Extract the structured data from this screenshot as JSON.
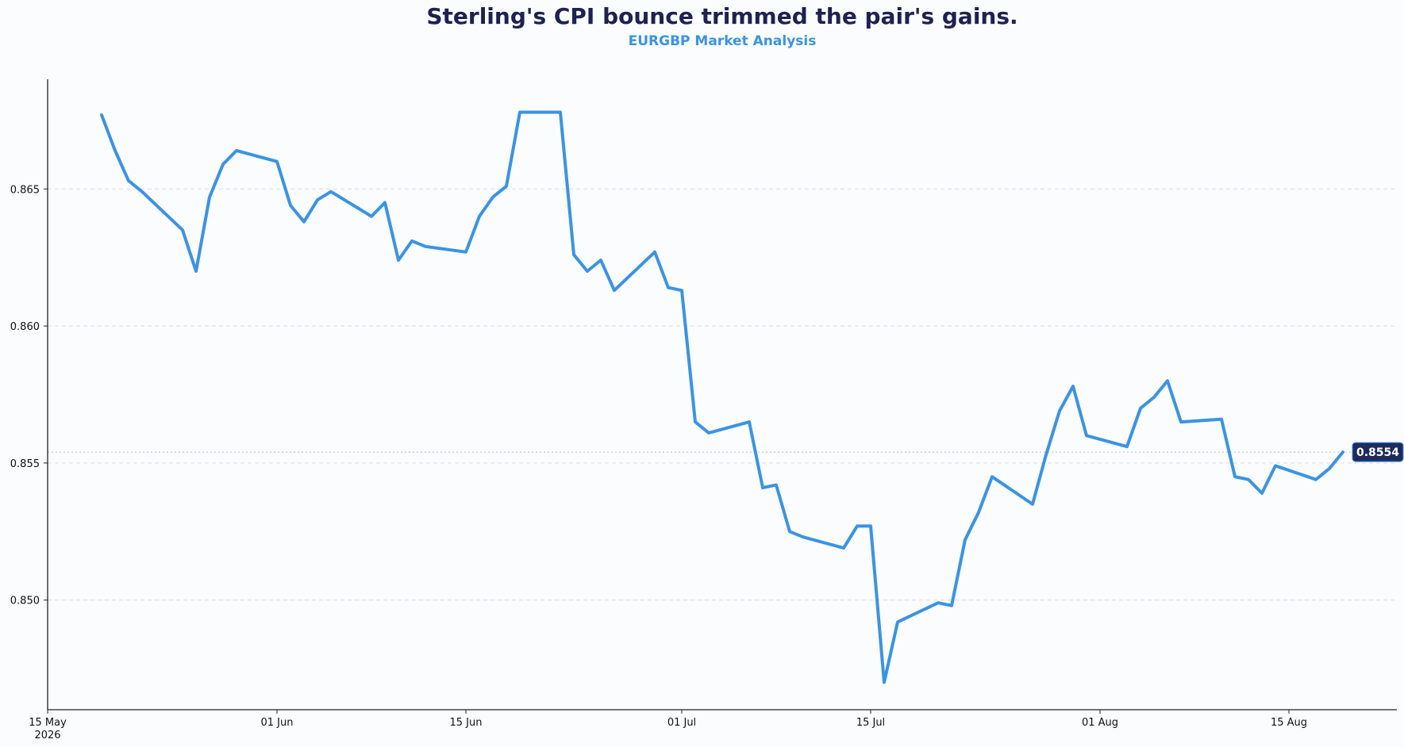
{
  "title": "Sterling's CPI bounce trimmed the pair's gains.",
  "subtitle": "EURGBP Market Analysis",
  "colors": {
    "line": "#3b93e3",
    "title": "#1f2150",
    "subtitle": "#3b93e3",
    "badge_bg": "#1f2a5c",
    "grid": "#d9dde3",
    "axis": "#222222"
  },
  "chart_data": {
    "type": "line",
    "title": "Sterling's CPI bounce trimmed the pair's gains.",
    "subtitle": "EURGBP Market Analysis",
    "xlabel": "",
    "ylabel": "",
    "xlim": [
      "2026-05-15",
      "2026-08-23"
    ],
    "ylim": [
      0.846,
      0.869
    ],
    "grid": "horizontal dashed",
    "last_value_label": "0.8554",
    "x_ticks": [
      {
        "date": "2026-05-15",
        "label": "15 May",
        "sublabel": "2026"
      },
      {
        "date": "2026-06-01",
        "label": "01 Jun",
        "sublabel": ""
      },
      {
        "date": "2026-06-15",
        "label": "15 Jun",
        "sublabel": ""
      },
      {
        "date": "2026-07-01",
        "label": "01 Jul",
        "sublabel": ""
      },
      {
        "date": "2026-07-15",
        "label": "15 Jul",
        "sublabel": ""
      },
      {
        "date": "2026-08-01",
        "label": "01 Aug",
        "sublabel": ""
      },
      {
        "date": "2026-08-15",
        "label": "15 Aug",
        "sublabel": ""
      }
    ],
    "y_ticks": [
      {
        "value": 0.85,
        "label": "0.850"
      },
      {
        "value": 0.855,
        "label": "0.855"
      },
      {
        "value": 0.86,
        "label": "0.860"
      },
      {
        "value": 0.865,
        "label": "0.865"
      }
    ],
    "series": [
      {
        "points": [
          [
            "2026-05-19",
            0.8677
          ],
          [
            "2026-05-20",
            0.8664
          ],
          [
            "2026-05-21",
            0.8653
          ],
          [
            "2026-05-22",
            0.8649
          ],
          [
            "2026-05-25",
            0.8635
          ],
          [
            "2026-05-26",
            0.862
          ],
          [
            "2026-05-27",
            0.8647
          ],
          [
            "2026-05-28",
            0.8659
          ],
          [
            "2026-05-29",
            0.8664
          ],
          [
            "2026-06-01",
            0.866
          ],
          [
            "2026-06-02",
            0.8644
          ],
          [
            "2026-06-03",
            0.8638
          ],
          [
            "2026-06-04",
            0.8646
          ],
          [
            "2026-06-05",
            0.8649
          ],
          [
            "2026-06-08",
            0.864
          ],
          [
            "2026-06-09",
            0.8645
          ],
          [
            "2026-06-10",
            0.8624
          ],
          [
            "2026-06-11",
            0.8631
          ],
          [
            "2026-06-12",
            0.8629
          ],
          [
            "2026-06-15",
            0.8627
          ],
          [
            "2026-06-16",
            0.864
          ],
          [
            "2026-06-17",
            0.8647
          ],
          [
            "2026-06-18",
            0.8651
          ],
          [
            "2026-06-19",
            0.8678
          ],
          [
            "2026-06-22",
            0.8678
          ],
          [
            "2026-06-23",
            0.8626
          ],
          [
            "2026-06-24",
            0.862
          ],
          [
            "2026-06-25",
            0.8624
          ],
          [
            "2026-06-26",
            0.8613
          ],
          [
            "2026-06-29",
            0.8627
          ],
          [
            "2026-06-30",
            0.8614
          ],
          [
            "2026-07-01",
            0.8613
          ],
          [
            "2026-07-02",
            0.8565
          ],
          [
            "2026-07-03",
            0.8561
          ],
          [
            "2026-07-06",
            0.8565
          ],
          [
            "2026-07-07",
            0.8541
          ],
          [
            "2026-07-08",
            0.8542
          ],
          [
            "2026-07-09",
            0.8525
          ],
          [
            "2026-07-10",
            0.8523
          ],
          [
            "2026-07-13",
            0.8519
          ],
          [
            "2026-07-14",
            0.8527
          ],
          [
            "2026-07-15",
            0.8527
          ],
          [
            "2026-07-16",
            0.847
          ],
          [
            "2026-07-17",
            0.8492
          ],
          [
            "2026-07-20",
            0.8499
          ],
          [
            "2026-07-21",
            0.8498
          ],
          [
            "2026-07-22",
            0.8522
          ],
          [
            "2026-07-23",
            0.8532
          ],
          [
            "2026-07-24",
            0.8545
          ],
          [
            "2026-07-27",
            0.8535
          ],
          [
            "2026-07-28",
            0.8553
          ],
          [
            "2026-07-29",
            0.8569
          ],
          [
            "2026-07-30",
            0.8578
          ],
          [
            "2026-07-31",
            0.856
          ],
          [
            "2026-08-03",
            0.8556
          ],
          [
            "2026-08-04",
            0.857
          ],
          [
            "2026-08-05",
            0.8574
          ],
          [
            "2026-08-06",
            0.858
          ],
          [
            "2026-08-07",
            0.8565
          ],
          [
            "2026-08-10",
            0.8566
          ],
          [
            "2026-08-11",
            0.8545
          ],
          [
            "2026-08-12",
            0.8544
          ],
          [
            "2026-08-13",
            0.8539
          ],
          [
            "2026-08-14",
            0.8549
          ],
          [
            "2026-08-17",
            0.8544
          ],
          [
            "2026-08-18",
            0.8548
          ],
          [
            "2026-08-19",
            0.8554
          ]
        ]
      }
    ]
  }
}
